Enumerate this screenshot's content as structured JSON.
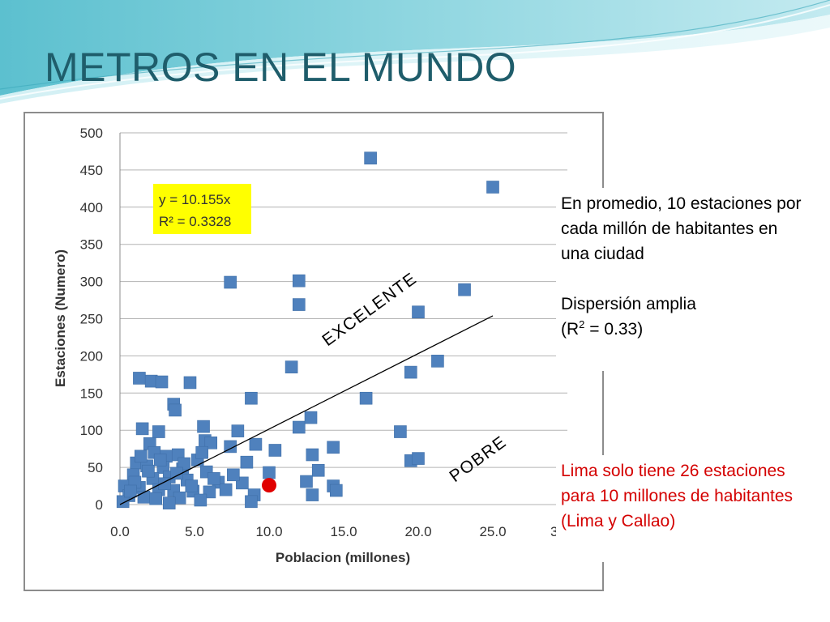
{
  "slide": {
    "title": "METROS EN EL MUNDO"
  },
  "notes": {
    "top_line1": "En promedio, 10 estaciones por cada millón de habitantes en una ciudad",
    "top_line2": "Dispersión amplia",
    "top_line3_a": "(R",
    "top_line3_sup": "2",
    "top_line3_b": " = 0.33)",
    "bottom": "Lima solo tiene 26 estaciones para 10 millones de habitantes (Lima y Callao)"
  },
  "chart_data": {
    "type": "scatter",
    "xlabel": "Poblacion (millones)",
    "ylabel": "Estaciones (Numero)",
    "xlim": [
      0,
      30
    ],
    "ylim": [
      0,
      500
    ],
    "x_ticks": [
      "0.0",
      "5.0",
      "10.0",
      "15.0",
      "20.0",
      "25.0",
      "3"
    ],
    "y_ticks": [
      "0",
      "50",
      "100",
      "150",
      "200",
      "250",
      "300",
      "350",
      "400",
      "450",
      "500"
    ],
    "grid": "horizontal",
    "equation_line1": "y = 10.155x",
    "equation_line2": "R² = 0.3328",
    "trendline": {
      "slope": 10.155,
      "x_range": [
        0,
        25
      ]
    },
    "labels": {
      "upper": "EXCELENTE",
      "lower": "POBRE"
    },
    "colors": {
      "marker": "#4f81bd",
      "highlight": "#e00000",
      "equation_box": "#ffff00",
      "title": "#1f5d6b",
      "grid": "#b3b3b3"
    },
    "highlight_point": {
      "x": 10.0,
      "y": 26
    },
    "points": [
      [
        16.8,
        466
      ],
      [
        25.0,
        427
      ],
      [
        7.4,
        299
      ],
      [
        12.0,
        301
      ],
      [
        23.1,
        289
      ],
      [
        12.0,
        269
      ],
      [
        20.0,
        259
      ],
      [
        11.5,
        185
      ],
      [
        21.3,
        193
      ],
      [
        19.5,
        178
      ],
      [
        1.3,
        170
      ],
      [
        2.1,
        166
      ],
      [
        2.8,
        165
      ],
      [
        4.7,
        164
      ],
      [
        8.8,
        143
      ],
      [
        16.5,
        143
      ],
      [
        3.6,
        135
      ],
      [
        3.7,
        127
      ],
      [
        1.5,
        102
      ],
      [
        2.6,
        98
      ],
      [
        5.6,
        105
      ],
      [
        7.9,
        99
      ],
      [
        12.0,
        104
      ],
      [
        12.8,
        117
      ],
      [
        18.8,
        98
      ],
      [
        2.0,
        82
      ],
      [
        5.7,
        86
      ],
      [
        6.1,
        83
      ],
      [
        7.4,
        78
      ],
      [
        9.1,
        81
      ],
      [
        10.4,
        73
      ],
      [
        14.3,
        77
      ],
      [
        2.3,
        70
      ],
      [
        3.1,
        65
      ],
      [
        3.9,
        67
      ],
      [
        5.2,
        60
      ],
      [
        8.5,
        57
      ],
      [
        12.9,
        67
      ],
      [
        19.5,
        59
      ],
      [
        20.0,
        62
      ],
      [
        1.1,
        56
      ],
      [
        1.8,
        52
      ],
      [
        2.9,
        50
      ],
      [
        4.2,
        48
      ],
      [
        5.8,
        44
      ],
      [
        10.0,
        43
      ],
      [
        13.3,
        46
      ],
      [
        0.9,
        40
      ],
      [
        2.2,
        35
      ],
      [
        3.3,
        37
      ],
      [
        4.5,
        33
      ],
      [
        6.6,
        30
      ],
      [
        8.2,
        29
      ],
      [
        12.5,
        31
      ],
      [
        14.3,
        25
      ],
      [
        0.3,
        25
      ],
      [
        1.3,
        23
      ],
      [
        2.6,
        20
      ],
      [
        3.6,
        19
      ],
      [
        4.9,
        18
      ],
      [
        6.0,
        17
      ],
      [
        7.1,
        20
      ],
      [
        9.0,
        13
      ],
      [
        12.9,
        13
      ],
      [
        14.5,
        19
      ],
      [
        0.6,
        12
      ],
      [
        1.6,
        10
      ],
      [
        2.4,
        8
      ],
      [
        4.0,
        9
      ],
      [
        5.4,
        6
      ],
      [
        0.2,
        4
      ],
      [
        3.3,
        2
      ],
      [
        8.8,
        4
      ],
      [
        1.0,
        30
      ],
      [
        1.9,
        45
      ],
      [
        3.0,
        28
      ],
      [
        4.8,
        25
      ],
      [
        6.3,
        35
      ],
      [
        7.6,
        40
      ],
      [
        2.7,
        60
      ],
      [
        4.3,
        55
      ],
      [
        5.5,
        70
      ],
      [
        1.4,
        65
      ],
      [
        0.7,
        18
      ],
      [
        3.8,
        42
      ]
    ]
  }
}
